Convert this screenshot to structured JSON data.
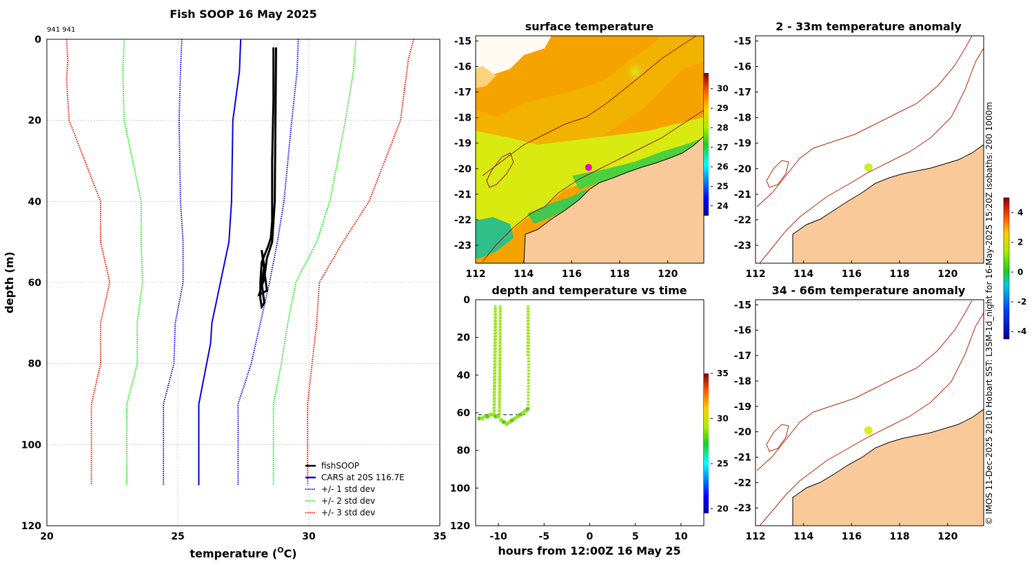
{
  "colors": {
    "fishsoop": "#000000",
    "cars": "#0000dd",
    "std1": "#0000ee",
    "std2": "#22dd22",
    "std3": "#ee1100",
    "land": "#f9c99a",
    "isobath": "#bb2200",
    "grid": "#b0b0b0"
  },
  "chart_data": [
    {
      "id": "profile",
      "type": "line",
      "title": "Fish SOOP 16 May 2025",
      "subtitle": "941 941",
      "xlabel": "temperature (",
      "xlabel_sup": "O",
      "xlabel_unit": "C)",
      "ylabel": "depth (m)",
      "xlim": [
        20,
        35
      ],
      "ylim": [
        0,
        120
      ],
      "y_inverted": true,
      "grid": true,
      "xticks": [
        20,
        25,
        30,
        35
      ],
      "yticks": [
        0,
        20,
        40,
        60,
        80,
        100,
        120
      ],
      "legend": {
        "placement": "bottom-right",
        "entries": [
          "fishSOOP",
          "CARS at 20S 116.7E",
          "+/- 1 std dev",
          "+/- 2 std dev",
          "+/- 3 std dev"
        ]
      },
      "series": [
        {
          "name": "CARS at 20S 116.7E",
          "style": "solid",
          "color": "cars",
          "temp": [
            27.4,
            27.35,
            27.1,
            27.05,
            26.95,
            26.3,
            26.25,
            25.8,
            25.8
          ],
          "depth": [
            0,
            8,
            20,
            40,
            50,
            70,
            75,
            90,
            110
          ]
        },
        {
          "name": "-1 std dev",
          "style": "dotted",
          "color": "std1",
          "temp": [
            25.15,
            25.1,
            25.05,
            25.1,
            25.2,
            25.2,
            24.9,
            24.85,
            24.45,
            24.45
          ],
          "depth": [
            0,
            8,
            20,
            40,
            50,
            60,
            70,
            80,
            90,
            110
          ]
        },
        {
          "name": "+1 std dev",
          "style": "dotted",
          "color": "std1",
          "temp": [
            29.6,
            29.55,
            29.35,
            29.05,
            28.8,
            28.5,
            28.15,
            27.8,
            27.3,
            27.3
          ],
          "depth": [
            0,
            8,
            20,
            40,
            50,
            60,
            70,
            80,
            90,
            110
          ]
        },
        {
          "name": "-2 std dev",
          "style": "dotted",
          "color": "std2",
          "temp": [
            22.95,
            22.9,
            22.95,
            23.6,
            23.6,
            23.65,
            23.45,
            23.45,
            23.05,
            23.05
          ],
          "depth": [
            0,
            8,
            20,
            40,
            50,
            60,
            70,
            80,
            90,
            110
          ]
        },
        {
          "name": "+2 std dev",
          "style": "dotted",
          "color": "std2",
          "temp": [
            31.8,
            31.7,
            31.4,
            30.8,
            30.3,
            29.5,
            29.2,
            28.95,
            28.65,
            28.65
          ],
          "depth": [
            0,
            8,
            20,
            40,
            50,
            60,
            70,
            80,
            90,
            110
          ]
        },
        {
          "name": "-3 std dev",
          "style": "dotted",
          "color": "std3",
          "temp": [
            20.75,
            20.8,
            20.75,
            20.85,
            22.05,
            22.05,
            22.4,
            22.05,
            22.05,
            21.7,
            21.7
          ],
          "depth": [
            0,
            5,
            10,
            20,
            40,
            50,
            60,
            70,
            80,
            90,
            110
          ]
        },
        {
          "name": "+3 std dev",
          "style": "dotted",
          "color": "std3",
          "temp": [
            34.0,
            33.8,
            33.7,
            33.5,
            32.3,
            31.3,
            30.4,
            30.3,
            29.95,
            29.95
          ],
          "depth": [
            0,
            5,
            10,
            20,
            40,
            50,
            60,
            70,
            90,
            110
          ]
        },
        {
          "name": "fishSOOP",
          "style": "solid",
          "color": "fishsoop",
          "temp": [
            28.65,
            28.65,
            28.6,
            28.6,
            28.55,
            28.45,
            28.2,
            28.15,
            28.15,
            28.2,
            28.3,
            28.2,
            28.3,
            28.2,
            28.4,
            28.1,
            28.3,
            28.4,
            28.6,
            28.7,
            28.75
          ],
          "depth": [
            2,
            15,
            30,
            45,
            49,
            51,
            55,
            60,
            64,
            66,
            65,
            60,
            56,
            52,
            62,
            63,
            59,
            54,
            50,
            40,
            2
          ]
        }
      ]
    },
    {
      "id": "sst_map",
      "type": "heatmap",
      "title": "surface temperature",
      "xlim": [
        112,
        121.5
      ],
      "ylim": [
        -23.7,
        -14.8
      ],
      "xticks": [
        112,
        114,
        116,
        118,
        120
      ],
      "yticks": [
        -15,
        -16,
        -17,
        -18,
        -19,
        -20,
        -21,
        -22,
        -23
      ],
      "colorbar_ticks": [
        24,
        25,
        26,
        27,
        28,
        29,
        30
      ],
      "colorbar_range": [
        23.5,
        30.8
      ],
      "marker": {
        "lon": 116.7,
        "lat": -19.95
      }
    },
    {
      "id": "depth_time",
      "type": "scatter",
      "title": "depth and temperature vs time",
      "xlabel": "hours from 12:00Z 16 May 25",
      "xlim": [
        -12.5,
        12.5
      ],
      "ylim": [
        0,
        120
      ],
      "y_inverted": true,
      "xticks": [
        -10,
        -5,
        0,
        5,
        10
      ],
      "yticks": [
        0,
        20,
        40,
        60,
        80,
        100,
        120
      ],
      "colorbar_ticks": [
        20,
        25,
        30,
        35
      ],
      "colorbar_range": [
        19.5,
        35
      ],
      "dashed_line": {
        "depth": 61,
        "hours": [
          -12.2,
          -6.8
        ]
      },
      "casts": [
        {
          "hours": [
            -10.45,
            -10.4,
            -10.35,
            -10.3,
            -10.35,
            -10.4,
            -10.45,
            -10.5
          ],
          "depth": [
            61,
            48,
            32,
            16,
            3,
            20,
            40,
            60
          ]
        },
        {
          "hours": [
            -9.9,
            -9.85,
            -9.8,
            -9.8,
            -9.85,
            -9.9
          ],
          "depth": [
            61,
            42,
            22,
            3,
            30,
            61
          ]
        },
        {
          "hours": [
            -6.75,
            -6.7,
            -6.7,
            -6.75,
            -6.8
          ],
          "depth": [
            58,
            40,
            20,
            3,
            30
          ]
        }
      ],
      "bottom_points": {
        "hours": [
          -12.1,
          -11.8,
          -11.5,
          -11.2,
          -10.9,
          -10.6,
          -10.3,
          -10.0,
          -9.7,
          -9.4,
          -9.1,
          -8.8,
          -8.5,
          -8.2,
          -7.9,
          -7.6,
          -7.3,
          -7.0,
          -6.8
        ],
        "depth": [
          63,
          63,
          62,
          62,
          61,
          61,
          62,
          62,
          64,
          65,
          66,
          65,
          64,
          63,
          62,
          61,
          60,
          59,
          58
        ]
      },
      "point_temp": 28.5
    },
    {
      "id": "anom_upper",
      "type": "heatmap",
      "title": "2 - 33m temperature anomaly",
      "xlim": [
        112,
        121.5
      ],
      "ylim": [
        -23.7,
        -14.8
      ],
      "xticks": [
        112,
        114,
        116,
        118,
        120
      ],
      "yticks": [
        -15,
        -16,
        -17,
        -18,
        -19,
        -20,
        -21,
        -22,
        -23
      ],
      "colorbar_ticks": [
        -4,
        -2,
        0,
        2,
        4
      ],
      "colorbar_range": [
        -4.5,
        5
      ],
      "marker": {
        "lon": 116.7,
        "lat": -19.95,
        "anomaly": 1.2
      }
    },
    {
      "id": "anom_lower",
      "type": "heatmap",
      "title": "34 - 66m temperature anomaly",
      "xlim": [
        112,
        121.5
      ],
      "ylim": [
        -23.7,
        -14.8
      ],
      "xticks": [
        112,
        114,
        116,
        118,
        120
      ],
      "yticks": [
        -15,
        -16,
        -17,
        -18,
        -19,
        -20,
        -21,
        -22,
        -23
      ],
      "marker": {
        "lon": 116.7,
        "lat": -19.95,
        "anomaly": 1.6
      }
    }
  ],
  "credit": "© IMOS 11-Dec-2025 20:10 Hobart SST: L3SM-1d_night for 16-May-2025 15:20Z isobaths: 200  1000m"
}
